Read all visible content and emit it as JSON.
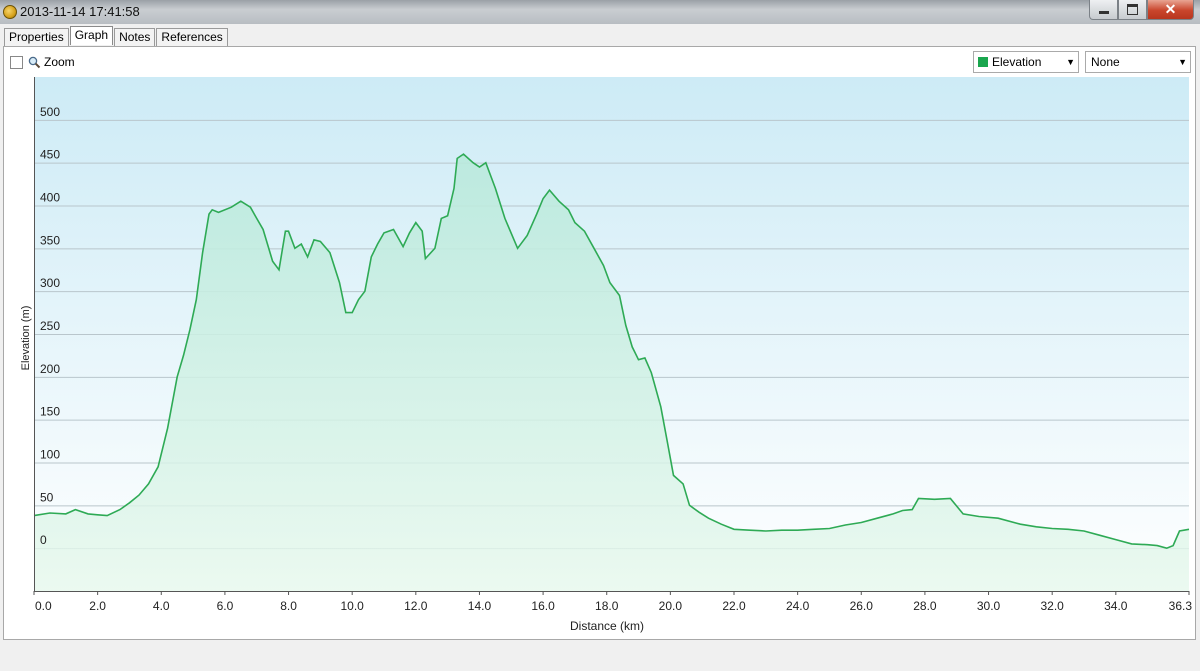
{
  "window": {
    "title": "2013-11-14 17:41:58",
    "close_glyph": "✕"
  },
  "tabs": [
    {
      "label": "Properties",
      "active": false
    },
    {
      "label": "Graph",
      "active": true
    },
    {
      "label": "Notes",
      "active": false
    },
    {
      "label": "References",
      "active": false
    }
  ],
  "toolbar": {
    "zoom_label": "Zoom",
    "zoom_checked": false,
    "series_select": "Elevation",
    "secondary_select": "None",
    "arrow": "▼"
  },
  "colors": {
    "line": "#2eaa55",
    "fill_top": "#b9e9dc",
    "bg_top": "#cdebf6",
    "bg_bottom": "#ffffff",
    "swatch": "#1aa64e"
  },
  "chart_data": {
    "type": "area",
    "xlabel": "Distance (km)",
    "ylabel": "Elevation (m)",
    "xlim": [
      0,
      36.3
    ],
    "ylim": [
      -50,
      550
    ],
    "x_ticks": [
      0,
      2,
      4,
      6,
      8,
      10,
      12,
      14,
      16,
      18,
      20,
      22,
      24,
      26,
      28,
      30,
      32,
      34,
      36.3
    ],
    "x_tick_labels": [
      "0.0",
      "2.0",
      "4.0",
      "6.0",
      "8.0",
      "10.0",
      "12.0",
      "14.0",
      "16.0",
      "18.0",
      "20.0",
      "22.0",
      "24.0",
      "26.0",
      "28.0",
      "30.0",
      "32.0",
      "34.0",
      "36.3"
    ],
    "y_ticks": [
      0,
      50,
      100,
      150,
      200,
      250,
      300,
      350,
      400,
      450,
      500
    ],
    "y_tick_labels": [
      "0",
      "50",
      "100",
      "150",
      "200",
      "250",
      "300",
      "350",
      "400",
      "450",
      "500"
    ],
    "grid": "horizontal",
    "series": [
      {
        "values": [
          [
            0.0,
            38
          ],
          [
            0.5,
            41
          ],
          [
            1.0,
            40
          ],
          [
            1.3,
            45
          ],
          [
            1.7,
            40
          ],
          [
            2.0,
            39
          ],
          [
            2.3,
            38
          ],
          [
            2.7,
            45
          ],
          [
            3.0,
            53
          ],
          [
            3.3,
            62
          ],
          [
            3.6,
            75
          ],
          [
            3.9,
            95
          ],
          [
            4.2,
            140
          ],
          [
            4.5,
            200
          ],
          [
            4.7,
            225
          ],
          [
            4.9,
            255
          ],
          [
            5.1,
            290
          ],
          [
            5.3,
            345
          ],
          [
            5.5,
            390
          ],
          [
            5.6,
            395
          ],
          [
            5.8,
            392
          ],
          [
            6.2,
            398
          ],
          [
            6.5,
            405
          ],
          [
            6.8,
            398
          ],
          [
            7.0,
            385
          ],
          [
            7.2,
            372
          ],
          [
            7.5,
            335
          ],
          [
            7.7,
            325
          ],
          [
            7.9,
            370
          ],
          [
            8.0,
            370
          ],
          [
            8.2,
            350
          ],
          [
            8.4,
            355
          ],
          [
            8.6,
            340
          ],
          [
            8.8,
            360
          ],
          [
            9.0,
            358
          ],
          [
            9.3,
            345
          ],
          [
            9.6,
            310
          ],
          [
            9.8,
            275
          ],
          [
            10.0,
            275
          ],
          [
            10.2,
            290
          ],
          [
            10.4,
            300
          ],
          [
            10.6,
            340
          ],
          [
            10.8,
            355
          ],
          [
            11.0,
            368
          ],
          [
            11.3,
            372
          ],
          [
            11.6,
            352
          ],
          [
            11.8,
            368
          ],
          [
            12.0,
            380
          ],
          [
            12.2,
            370
          ],
          [
            12.3,
            338
          ],
          [
            12.6,
            350
          ],
          [
            12.8,
            385
          ],
          [
            13.0,
            388
          ],
          [
            13.2,
            420
          ],
          [
            13.3,
            455
          ],
          [
            13.5,
            460
          ],
          [
            13.8,
            450
          ],
          [
            14.0,
            445
          ],
          [
            14.2,
            450
          ],
          [
            14.5,
            420
          ],
          [
            14.8,
            385
          ],
          [
            15.2,
            350
          ],
          [
            15.5,
            365
          ],
          [
            15.8,
            390
          ],
          [
            16.0,
            408
          ],
          [
            16.2,
            418
          ],
          [
            16.5,
            405
          ],
          [
            16.8,
            395
          ],
          [
            17.0,
            380
          ],
          [
            17.3,
            370
          ],
          [
            17.6,
            350
          ],
          [
            17.9,
            330
          ],
          [
            18.1,
            310
          ],
          [
            18.4,
            295
          ],
          [
            18.6,
            260
          ],
          [
            18.8,
            235
          ],
          [
            19.0,
            220
          ],
          [
            19.2,
            222
          ],
          [
            19.4,
            205
          ],
          [
            19.7,
            165
          ],
          [
            19.9,
            125
          ],
          [
            20.1,
            85
          ],
          [
            20.4,
            75
          ],
          [
            20.6,
            50
          ],
          [
            20.9,
            42
          ],
          [
            21.2,
            35
          ],
          [
            21.6,
            28
          ],
          [
            22.0,
            22
          ],
          [
            22.5,
            21
          ],
          [
            23.0,
            20
          ],
          [
            23.5,
            21
          ],
          [
            24.0,
            21
          ],
          [
            24.5,
            22
          ],
          [
            25.0,
            23
          ],
          [
            25.5,
            27
          ],
          [
            26.0,
            30
          ],
          [
            26.5,
            35
          ],
          [
            27.0,
            40
          ],
          [
            27.3,
            44
          ],
          [
            27.6,
            45
          ],
          [
            27.8,
            58
          ],
          [
            28.3,
            57
          ],
          [
            28.8,
            58
          ],
          [
            29.2,
            40
          ],
          [
            29.7,
            37
          ],
          [
            30.3,
            35
          ],
          [
            31.0,
            28
          ],
          [
            31.5,
            25
          ],
          [
            32.0,
            23
          ],
          [
            32.5,
            22
          ],
          [
            33.0,
            20
          ],
          [
            33.5,
            15
          ],
          [
            34.0,
            10
          ],
          [
            34.5,
            5
          ],
          [
            35.0,
            4
          ],
          [
            35.3,
            3
          ],
          [
            35.6,
            0
          ],
          [
            35.8,
            3
          ],
          [
            36.0,
            20
          ],
          [
            36.3,
            22
          ]
        ]
      }
    ]
  }
}
